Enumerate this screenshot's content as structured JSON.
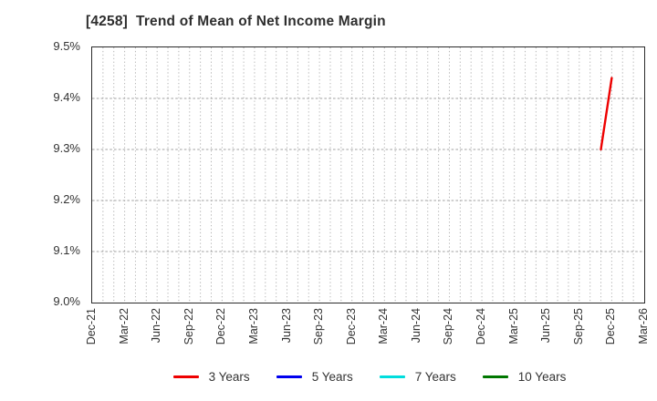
{
  "header": {
    "title": "[4258]  Trend of Mean of Net Income Margin"
  },
  "chart_data": {
    "type": "line",
    "title": "[4258]  Trend of Mean of Net Income Margin",
    "xlabel": "",
    "ylabel": "",
    "ylim": [
      9.0,
      9.5
    ],
    "ytick_labels": [
      "9.5%",
      "9.4%",
      "9.3%",
      "9.2%",
      "9.1%",
      "9.0%"
    ],
    "ytick_values": [
      9.5,
      9.4,
      9.3,
      9.2,
      9.1,
      9.0
    ],
    "x_tick_labels": [
      "Dec-21",
      "Mar-22",
      "Jun-22",
      "Sep-22",
      "Dec-22",
      "Mar-23",
      "Jun-23",
      "Sep-23",
      "Dec-23",
      "Mar-24",
      "Jun-24",
      "Sep-24",
      "Dec-24",
      "Mar-25",
      "Jun-25",
      "Sep-25",
      "Dec-25",
      "Mar-26"
    ],
    "x_months_per_tick": 3,
    "x_total_months": 51,
    "grid": {
      "vertical": "monthly dotted",
      "horizontal": "every 0.1% dashed",
      "enabled": true
    },
    "legend_position": "bottom-center",
    "series": [
      {
        "name": "3 Years",
        "color": "#ee0000",
        "points": [
          {
            "month": "Nov-25",
            "month_index": 47,
            "value": 9.3
          },
          {
            "month": "Dec-25",
            "month_index": 48,
            "value": 9.44
          }
        ]
      },
      {
        "name": "5 Years",
        "color": "#0000ee",
        "points": []
      },
      {
        "name": "7 Years",
        "color": "#00dddd",
        "points": []
      },
      {
        "name": "10 Years",
        "color": "#007700",
        "points": []
      }
    ]
  },
  "colors": {
    "background": "#ffffff",
    "plot_border": "#2a2a2a",
    "grid_vertical": "#b5b5b5",
    "grid_horizontal": "#a0a0a0",
    "text": "#333333"
  }
}
